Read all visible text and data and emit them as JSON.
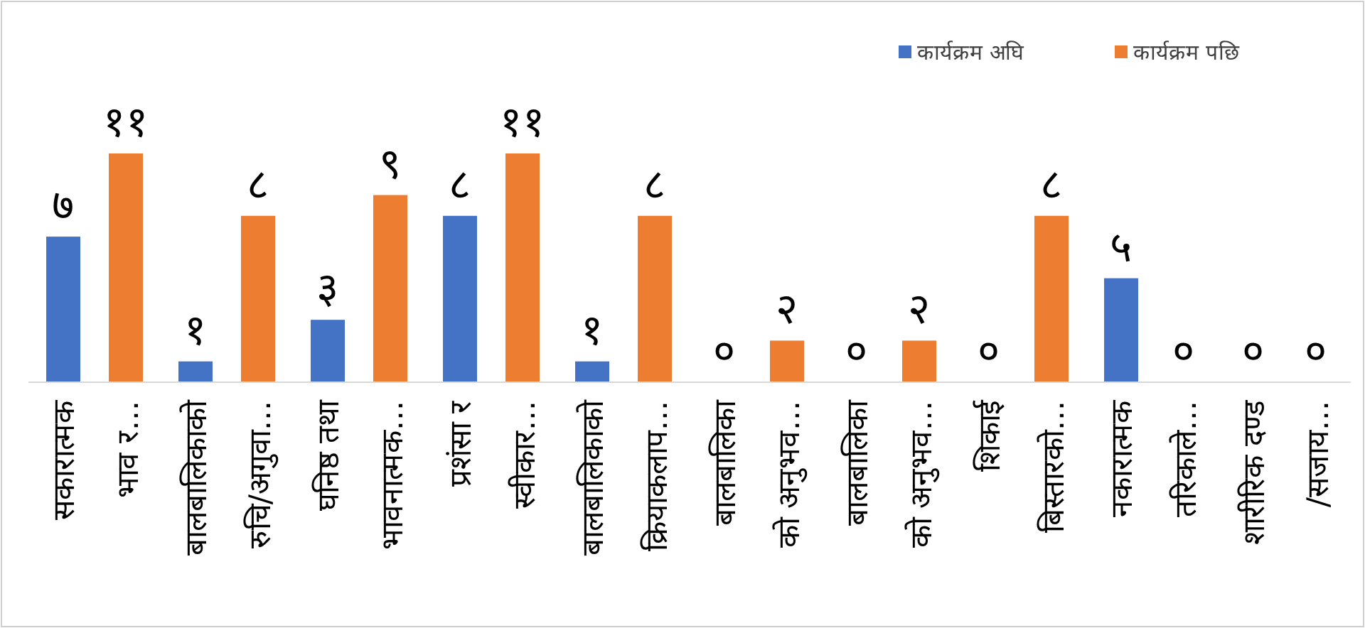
{
  "chart_data": {
    "type": "bar",
    "categories": [
      "सकारात्मक\nभाव र…",
      "बालबालिकाको\nरुचि/अगुवा…",
      "घनिष्ठ तथा\nभावनात्मक…",
      "प्रशंसा र\nस्वीकार…",
      "बालबालिकाको\nक्रियाकलाप…",
      "बालबालिका\nको अनुभव…",
      "बालबालिका\nको अनुभव…",
      "शिकाई\nबिस्तारको…",
      "नकारात्मक\nतरिकाले…",
      "शारीरिक दण्ड\n/सजाय…"
    ],
    "series": [
      {
        "name": "कार्यक्रम अघि",
        "color": "#4472c4",
        "values": [
          7,
          1,
          3,
          8,
          1,
          0,
          0,
          0,
          5,
          0
        ],
        "value_labels": [
          "७",
          "१",
          "३",
          "८",
          "१",
          "०",
          "०",
          "०",
          "५",
          "०"
        ]
      },
      {
        "name": "कार्यक्रम पछि",
        "color": "#ed7d31",
        "values": [
          11,
          8,
          9,
          11,
          8,
          2,
          2,
          8,
          0,
          0
        ],
        "value_labels": [
          "११",
          "८",
          "९",
          "११",
          "८",
          "२",
          "२",
          "८",
          "०",
          "०"
        ]
      }
    ],
    "legend": "top right"
  }
}
